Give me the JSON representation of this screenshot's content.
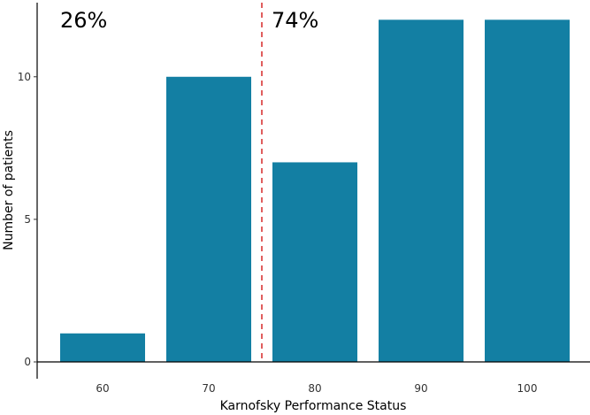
{
  "chart_data": {
    "type": "bar",
    "title": "",
    "xlabel": "Karnofsky Performance Status",
    "ylabel": "Number of patients",
    "categories": [
      "60",
      "70",
      "80",
      "90",
      "100"
    ],
    "values": [
      1,
      10,
      7,
      12,
      12
    ],
    "ylim": [
      0,
      12.6
    ],
    "yticks": [
      0,
      5,
      10
    ],
    "grid": false,
    "bar_color": "#137fa3",
    "threshold_line": {
      "between": [
        "70",
        "80"
      ],
      "color": "#d62828",
      "style": "dashed"
    },
    "annotations": [
      {
        "text": "26%",
        "side": "left"
      },
      {
        "text": "74%",
        "side": "right"
      }
    ]
  }
}
